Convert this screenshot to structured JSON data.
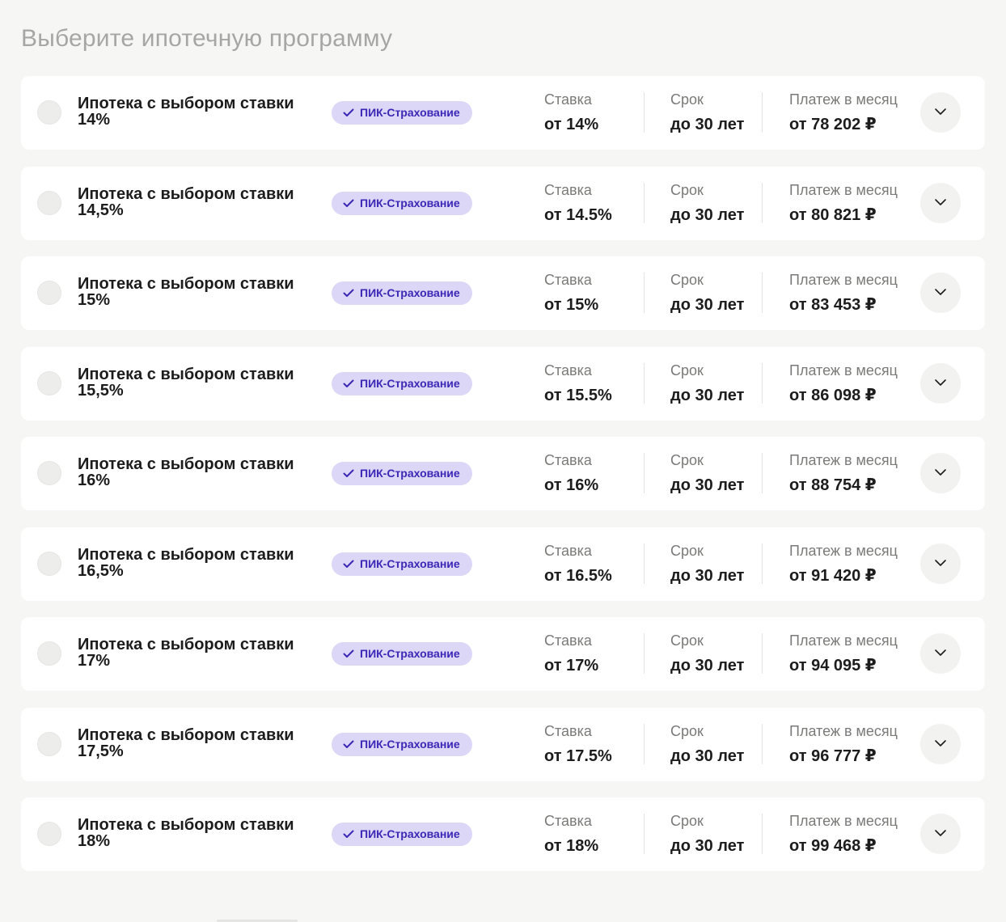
{
  "page": {
    "title": "Выберите ипотечную программу"
  },
  "colors": {
    "background": "#f6f6f4",
    "card": "#ffffff",
    "badge_bg": "#dcd7f6",
    "badge_text": "#3b27b6",
    "title_text": "#a6a6a4",
    "label_text": "#7a7a78"
  },
  "icons": {
    "badge": "check-icon",
    "expand": "chevron-down-icon"
  },
  "programs": [
    {
      "name": "Ипотека с выбором ставки 14%",
      "badge": "ПИК-Страхование",
      "rate_label": "Ставка",
      "rate_value": "от 14%",
      "term_label": "Срок",
      "term_value": "до 30 лет",
      "payment_label": "Платеж в месяц",
      "payment_value": "от 78 202 ₽"
    },
    {
      "name": "Ипотека с выбором ставки 14,5%",
      "badge": "ПИК-Страхование",
      "rate_label": "Ставка",
      "rate_value": "от 14.5%",
      "term_label": "Срок",
      "term_value": "до 30 лет",
      "payment_label": "Платеж в месяц",
      "payment_value": "от 80 821 ₽"
    },
    {
      "name": "Ипотека с выбором ставки 15%",
      "badge": "ПИК-Страхование",
      "rate_label": "Ставка",
      "rate_value": "от 15%",
      "term_label": "Срок",
      "term_value": "до 30 лет",
      "payment_label": "Платеж в месяц",
      "payment_value": "от 83 453 ₽"
    },
    {
      "name": "Ипотека с выбором ставки 15,5%",
      "badge": "ПИК-Страхование",
      "rate_label": "Ставка",
      "rate_value": "от 15.5%",
      "term_label": "Срок",
      "term_value": "до 30 лет",
      "payment_label": "Платеж в месяц",
      "payment_value": "от 86 098 ₽"
    },
    {
      "name": "Ипотека с выбором ставки 16%",
      "badge": "ПИК-Страхование",
      "rate_label": "Ставка",
      "rate_value": "от 16%",
      "term_label": "Срок",
      "term_value": "до 30 лет",
      "payment_label": "Платеж в месяц",
      "payment_value": "от 88 754 ₽"
    },
    {
      "name": "Ипотека с выбором ставки 16,5%",
      "badge": "ПИК-Страхование",
      "rate_label": "Ставка",
      "rate_value": "от 16.5%",
      "term_label": "Срок",
      "term_value": "до 30 лет",
      "payment_label": "Платеж в месяц",
      "payment_value": "от 91 420 ₽"
    },
    {
      "name": "Ипотека с выбором ставки 17%",
      "badge": "ПИК-Страхование",
      "rate_label": "Ставка",
      "rate_value": "от 17%",
      "term_label": "Срок",
      "term_value": "до 30 лет",
      "payment_label": "Платеж в месяц",
      "payment_value": "от 94 095 ₽"
    },
    {
      "name": "Ипотека с выбором ставки 17,5%",
      "badge": "ПИК-Страхование",
      "rate_label": "Ставка",
      "rate_value": "от 17.5%",
      "term_label": "Срок",
      "term_value": "до 30 лет",
      "payment_label": "Платеж в месяц",
      "payment_value": "от 96 777 ₽"
    },
    {
      "name": "Ипотека с выбором ставки 18%",
      "badge": "ПИК-Страхование",
      "rate_label": "Ставка",
      "rate_value": "от 18%",
      "term_label": "Срок",
      "term_value": "до 30 лет",
      "payment_label": "Платеж в месяц",
      "payment_value": "от 99 468 ₽"
    }
  ]
}
